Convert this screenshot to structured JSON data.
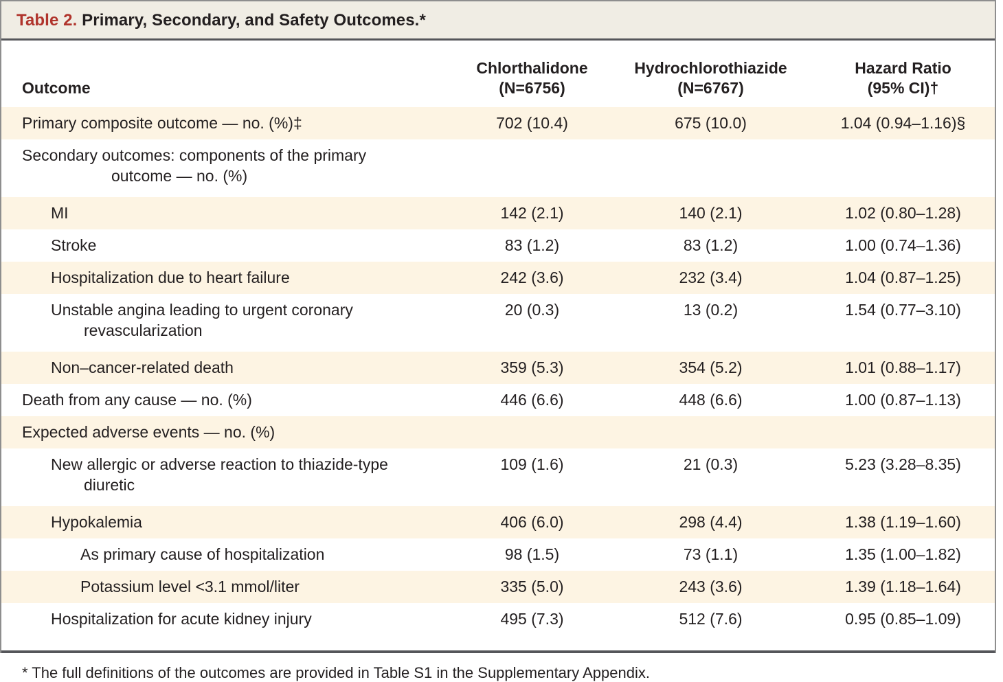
{
  "table": {
    "title_label": "Table 2.",
    "title_text": " Primary, Secondary, and Safety Outcomes.*",
    "columns": {
      "outcome": "Outcome",
      "group1": "Chlorthalidone\n(N=6756)",
      "group2": "Hydrochlorothiazide\n(N=6767)",
      "hazard": "Hazard Ratio\n(95% CI)†"
    },
    "rows": [
      {
        "label": "Primary composite outcome — no. (%)‡",
        "indent": 0,
        "values": [
          "702 (10.4)",
          "675 (10.0)",
          "1.04 (0.94–1.16)§"
        ]
      },
      {
        "label": "Secondary outcomes: components of the primary\noutcome — no. (%)",
        "indent": 0,
        "values": [
          "",
          "",
          ""
        ]
      },
      {
        "label": "MI",
        "indent": 1,
        "values": [
          "142 (2.1)",
          "140 (2.1)",
          "1.02 (0.80–1.28)"
        ]
      },
      {
        "label": "Stroke",
        "indent": 1,
        "values": [
          "83 (1.2)",
          "83 (1.2)",
          "1.00 (0.74–1.36)"
        ]
      },
      {
        "label": "Hospitalization due to heart failure",
        "indent": 1,
        "values": [
          "242 (3.6)",
          "232 (3.4)",
          "1.04 (0.87–1.25)"
        ]
      },
      {
        "label": "Unstable angina leading to urgent coronary\nrevascularization",
        "indent": 1,
        "values": [
          "20 (0.3)",
          "13 (0.2)",
          "1.54 (0.77–3.10)"
        ]
      },
      {
        "label": "Non–cancer-related death",
        "indent": 1,
        "values": [
          "359 (5.3)",
          "354 (5.2)",
          "1.01 (0.88–1.17)"
        ]
      },
      {
        "label": "Death from any cause — no. (%)",
        "indent": 0,
        "values": [
          "446 (6.6)",
          "448 (6.6)",
          "1.00 (0.87–1.13)"
        ]
      },
      {
        "label": "Expected adverse events — no. (%)",
        "indent": 0,
        "values": [
          "",
          "",
          ""
        ]
      },
      {
        "label": "New allergic or adverse reaction to thiazide-type\ndiuretic",
        "indent": 1,
        "values": [
          "109 (1.6)",
          "21 (0.3)",
          "5.23 (3.28–8.35)"
        ]
      },
      {
        "label": "Hypokalemia",
        "indent": 1,
        "values": [
          "406 (6.0)",
          "298 (4.4)",
          "1.38 (1.19–1.60)"
        ]
      },
      {
        "label": "As primary cause of hospitalization",
        "indent": 2,
        "values": [
          "98 (1.5)",
          "73 (1.1)",
          "1.35 (1.00–1.82)"
        ]
      },
      {
        "label": "Potassium level <3.1 mmol/liter",
        "indent": 2,
        "values": [
          "335 (5.0)",
          "243 (3.6)",
          "1.39 (1.18–1.64)"
        ]
      },
      {
        "label": "Hospitalization for acute kidney injury",
        "indent": 1,
        "values": [
          "495 (7.3)",
          "512 (7.6)",
          "0.95 (0.85–1.09)"
        ]
      }
    ],
    "footnote": "* The full definitions of the outcomes are provided in Table S1 in the Supplementary Appendix."
  },
  "colors": {
    "accent_red": "#b0342c",
    "titlebar_bg": "#f0ede4",
    "row_shade": "#fdf4e3",
    "rule_dark": "#55565a",
    "border_gray": "#8e8e8e",
    "text": "#231f20"
  }
}
